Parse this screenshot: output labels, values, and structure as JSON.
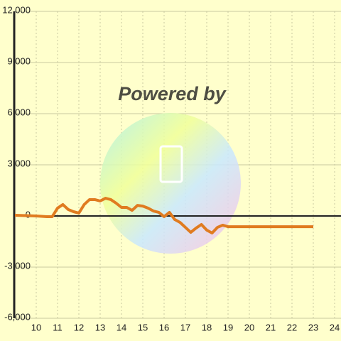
{
  "chart_data": {
    "type": "line",
    "watermark": "Powered by",
    "x": [
      9,
      10,
      10.5,
      10.75,
      11,
      11.25,
      11.5,
      11.75,
      12,
      12.25,
      12.5,
      12.75,
      13,
      13.25,
      13.5,
      13.75,
      14,
      14.25,
      14.5,
      14.75,
      15,
      15.25,
      15.5,
      15.75,
      16,
      16.25,
      16.5,
      16.75,
      17,
      17.25,
      17.5,
      17.75,
      18,
      18.25,
      18.5,
      18.75,
      19,
      20,
      21,
      22,
      23
    ],
    "series": [
      {
        "color": "#e07b20",
        "values": [
          40,
          0,
          -40,
          -40,
          460,
          670,
          380,
          250,
          170,
          670,
          960,
          960,
          880,
          1040,
          960,
          750,
          500,
          500,
          330,
          620,
          580,
          460,
          290,
          210,
          -40,
          210,
          -210,
          -380,
          -670,
          -960,
          -710,
          -500,
          -830,
          -1000,
          -670,
          -540,
          -630,
          -630,
          -630,
          -630,
          -630
        ]
      }
    ],
    "xlim": [
      9,
      24.3
    ],
    "xticks": [
      10,
      11,
      12,
      13,
      14,
      15,
      16,
      17,
      18,
      19,
      20,
      21,
      22,
      23,
      24
    ],
    "ylim": [
      -6000,
      12000
    ],
    "yticks": [
      {
        "value": -6000,
        "label": "-6,000"
      },
      {
        "value": -3000,
        "label": "-3,000"
      },
      0,
      {
        "value": 3000,
        "label": "3,000"
      },
      {
        "value": 6000,
        "label": "6,000"
      },
      {
        "value": 9000,
        "label": "9,000"
      },
      {
        "value": 12000,
        "label": "12,000"
      }
    ],
    "grid": true
  }
}
